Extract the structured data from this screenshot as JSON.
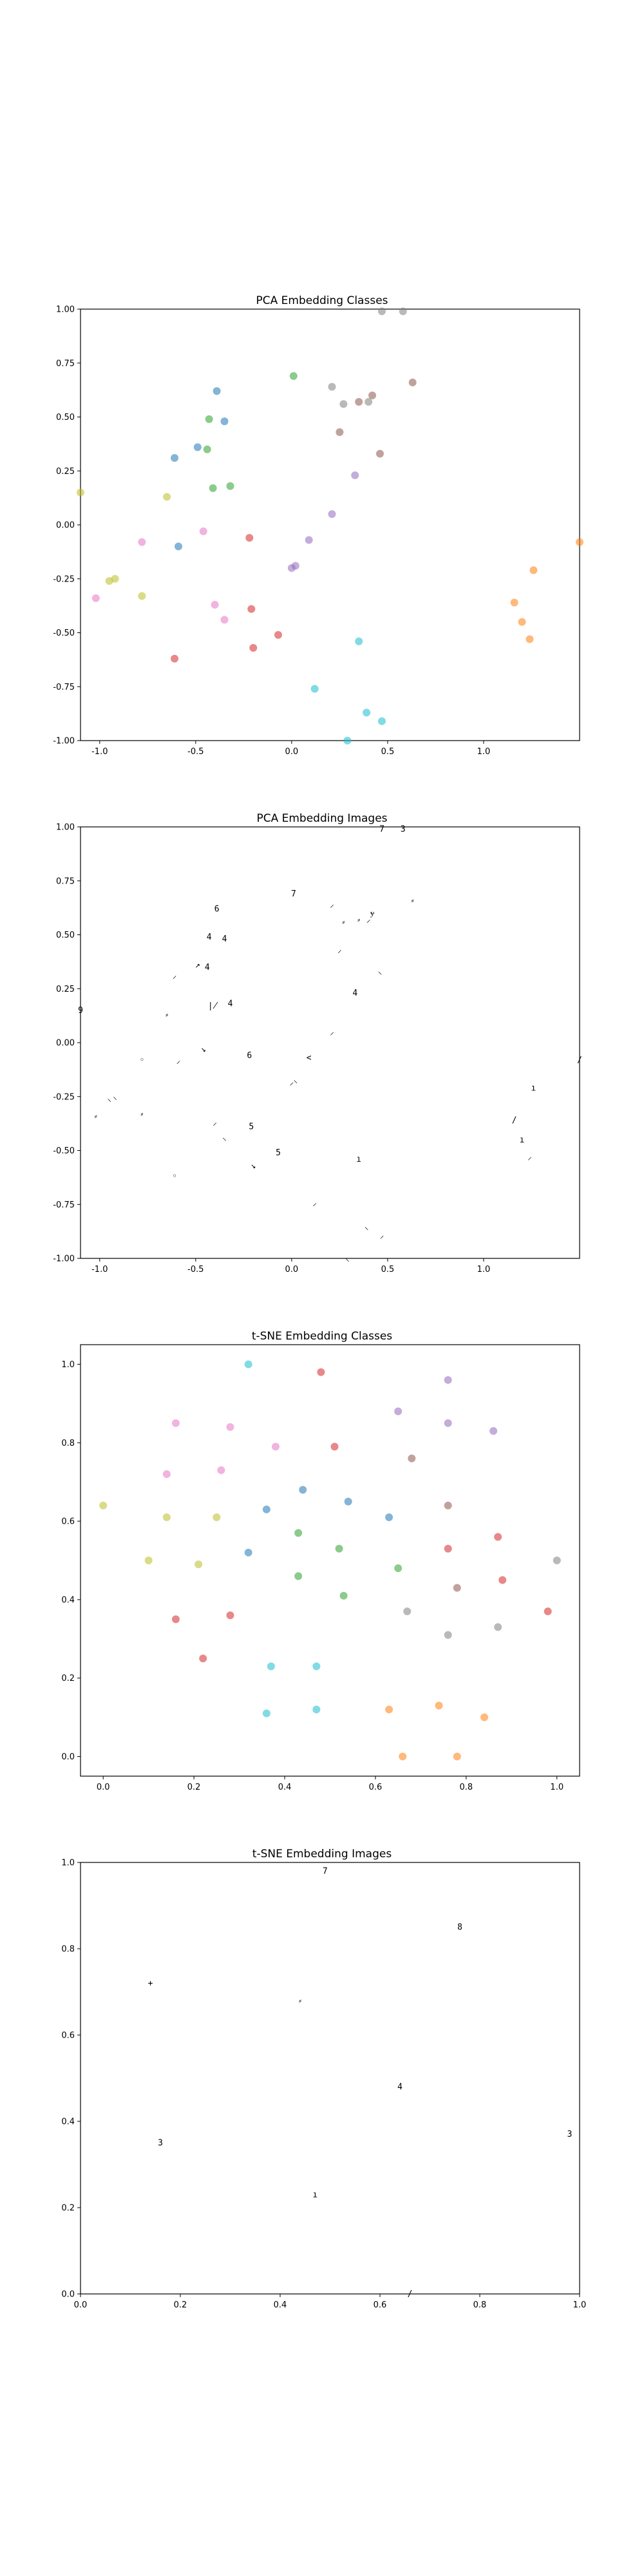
{
  "chart_data": [
    {
      "type": "scatter",
      "title": "PCA Embedding Classes",
      "xlim": [
        -1.1,
        1.5
      ],
      "ylim": [
        -1.0,
        1.0
      ],
      "xticks": [
        "-1.0",
        "-0.5",
        "0.0",
        "0.5",
        "1.0"
      ],
      "yticks": [
        "1.00",
        "0.75",
        "0.50",
        "0.25",
        "0.00",
        "-0.25",
        "-0.50",
        "-0.75",
        "-1.00"
      ],
      "xtick_values": [
        -1.0,
        -0.5,
        0.0,
        0.5,
        1.0
      ],
      "ytick_values": [
        1.0,
        0.75,
        0.5,
        0.25,
        0.0,
        -0.25,
        -0.5,
        -0.75,
        -1.0
      ],
      "grid": false,
      "points": [
        {
          "x": -0.39,
          "y": 0.62,
          "c": "#1f77b4"
        },
        {
          "x": -0.35,
          "y": 0.48,
          "c": "#1f77b4"
        },
        {
          "x": -0.49,
          "y": 0.36,
          "c": "#1f77b4"
        },
        {
          "x": -0.61,
          "y": 0.31,
          "c": "#1f77b4"
        },
        {
          "x": -0.59,
          "y": -0.1,
          "c": "#1f77b4"
        },
        {
          "x": 1.16,
          "y": -0.36,
          "c": "#ff7f0e"
        },
        {
          "x": 1.26,
          "y": -0.21,
          "c": "#ff7f0e"
        },
        {
          "x": 1.2,
          "y": -0.45,
          "c": "#ff7f0e"
        },
        {
          "x": 1.24,
          "y": -0.53,
          "c": "#ff7f0e"
        },
        {
          "x": 1.5,
          "y": -0.08,
          "c": "#ff7f0e"
        },
        {
          "x": 0.01,
          "y": 0.69,
          "c": "#2ca02c"
        },
        {
          "x": -0.43,
          "y": 0.49,
          "c": "#2ca02c"
        },
        {
          "x": -0.44,
          "y": 0.35,
          "c": "#2ca02c"
        },
        {
          "x": -0.41,
          "y": 0.17,
          "c": "#2ca02c"
        },
        {
          "x": -0.32,
          "y": 0.18,
          "c": "#2ca02c"
        },
        {
          "x": -0.22,
          "y": -0.06,
          "c": "#d62728"
        },
        {
          "x": -0.21,
          "y": -0.39,
          "c": "#d62728"
        },
        {
          "x": -0.07,
          "y": -0.51,
          "c": "#d62728"
        },
        {
          "x": -0.2,
          "y": -0.57,
          "c": "#d62728"
        },
        {
          "x": -0.61,
          "y": -0.62,
          "c": "#d62728"
        },
        {
          "x": 0.33,
          "y": 0.23,
          "c": "#9467bd"
        },
        {
          "x": 0.21,
          "y": 0.05,
          "c": "#9467bd"
        },
        {
          "x": 0.09,
          "y": -0.07,
          "c": "#9467bd"
        },
        {
          "x": 0.02,
          "y": -0.19,
          "c": "#9467bd"
        },
        {
          "x": 0.0,
          "y": -0.2,
          "c": "#9467bd"
        },
        {
          "x": 0.42,
          "y": 0.6,
          "c": "#8c564b"
        },
        {
          "x": 0.63,
          "y": 0.66,
          "c": "#8c564b"
        },
        {
          "x": 0.25,
          "y": 0.43,
          "c": "#8c564b"
        },
        {
          "x": 0.35,
          "y": 0.57,
          "c": "#8c564b"
        },
        {
          "x": 0.46,
          "y": 0.33,
          "c": "#8c564b"
        },
        {
          "x": -0.78,
          "y": -0.08,
          "c": "#e377c2"
        },
        {
          "x": -0.46,
          "y": -0.03,
          "c": "#e377c2"
        },
        {
          "x": -0.4,
          "y": -0.37,
          "c": "#e377c2"
        },
        {
          "x": -0.35,
          "y": -0.44,
          "c": "#e377c2"
        },
        {
          "x": -1.02,
          "y": -0.34,
          "c": "#e377c2"
        },
        {
          "x": 0.21,
          "y": 0.64,
          "c": "#7f7f7f"
        },
        {
          "x": 0.27,
          "y": 0.56,
          "c": "#7f7f7f"
        },
        {
          "x": 0.4,
          "y": 0.57,
          "c": "#7f7f7f"
        },
        {
          "x": 0.47,
          "y": 0.99,
          "c": "#7f7f7f"
        },
        {
          "x": 0.58,
          "y": 0.99,
          "c": "#7f7f7f"
        },
        {
          "x": -0.65,
          "y": 0.13,
          "c": "#bcbd22"
        },
        {
          "x": -1.1,
          "y": 0.15,
          "c": "#bcbd22"
        },
        {
          "x": -0.95,
          "y": -0.26,
          "c": "#bcbd22"
        },
        {
          "x": -0.92,
          "y": -0.25,
          "c": "#bcbd22"
        },
        {
          "x": -0.78,
          "y": -0.33,
          "c": "#bcbd22"
        },
        {
          "x": 0.35,
          "y": -0.54,
          "c": "#17becf"
        },
        {
          "x": 0.12,
          "y": -0.76,
          "c": "#17becf"
        },
        {
          "x": 0.39,
          "y": -0.87,
          "c": "#17becf"
        },
        {
          "x": 0.47,
          "y": -0.91,
          "c": "#17becf"
        },
        {
          "x": 0.29,
          "y": -1.0,
          "c": "#17becf"
        }
      ]
    },
    {
      "type": "scatter",
      "title": "PCA Embedding Images",
      "xlim": [
        -1.1,
        1.5
      ],
      "ylim": [
        -1.0,
        1.0
      ],
      "xticks": [
        "-1.0",
        "-0.5",
        "0.0",
        "0.5",
        "1.0"
      ],
      "yticks": [
        "1.00",
        "0.75",
        "0.50",
        "0.25",
        "0.00",
        "-0.25",
        "-0.50",
        "-0.75",
        "-1.00"
      ],
      "xtick_values": [
        -1.0,
        -0.5,
        0.0,
        0.5,
        1.0
      ],
      "ytick_values": [
        1.0,
        0.75,
        0.5,
        0.25,
        0.0,
        -0.25,
        -0.5,
        -0.75,
        -1.0
      ],
      "grid": false,
      "points": [
        {
          "x": -0.39,
          "y": 0.62,
          "g": "6"
        },
        {
          "x": -0.35,
          "y": 0.48,
          "g": "4"
        },
        {
          "x": -0.49,
          "y": 0.36,
          "g": "↗"
        },
        {
          "x": -0.61,
          "y": 0.31,
          "g": "⸝"
        },
        {
          "x": -0.59,
          "y": -0.1,
          "g": "⸍"
        },
        {
          "x": 1.16,
          "y": -0.36,
          "g": "/"
        },
        {
          "x": 1.26,
          "y": -0.21,
          "g": "ı"
        },
        {
          "x": 1.2,
          "y": -0.45,
          "g": "ı"
        },
        {
          "x": 1.24,
          "y": -0.53,
          "g": "⸝"
        },
        {
          "x": 1.5,
          "y": -0.08,
          "g": "/"
        },
        {
          "x": 0.01,
          "y": 0.69,
          "g": "7"
        },
        {
          "x": -0.43,
          "y": 0.49,
          "g": "4"
        },
        {
          "x": -0.44,
          "y": 0.35,
          "g": "4"
        },
        {
          "x": -0.41,
          "y": 0.17,
          "g": "∤"
        },
        {
          "x": -0.32,
          "y": 0.18,
          "g": "4"
        },
        {
          "x": -0.22,
          "y": -0.06,
          "g": "6"
        },
        {
          "x": -0.21,
          "y": -0.39,
          "g": "5"
        },
        {
          "x": -0.07,
          "y": -0.51,
          "g": "5"
        },
        {
          "x": -0.2,
          "y": -0.57,
          "g": "↘"
        },
        {
          "x": -0.61,
          "y": -0.62,
          "g": "◦"
        },
        {
          "x": 0.33,
          "y": 0.23,
          "g": "4"
        },
        {
          "x": 0.21,
          "y": 0.05,
          "g": "⸝"
        },
        {
          "x": 0.09,
          "y": -0.07,
          "g": "<"
        },
        {
          "x": 0.02,
          "y": -0.19,
          "g": "⸌"
        },
        {
          "x": 0.0,
          "y": -0.2,
          "g": "⸍"
        },
        {
          "x": 0.42,
          "y": 0.6,
          "g": "ɏ"
        },
        {
          "x": 0.63,
          "y": 0.66,
          "g": "⸗"
        },
        {
          "x": 0.25,
          "y": 0.43,
          "g": "⸝"
        },
        {
          "x": 0.35,
          "y": 0.57,
          "g": "⸗"
        },
        {
          "x": 0.46,
          "y": 0.33,
          "g": "⸜"
        },
        {
          "x": -0.78,
          "y": -0.08,
          "g": "◦"
        },
        {
          "x": -0.46,
          "y": -0.03,
          "g": "↘"
        },
        {
          "x": -0.4,
          "y": -0.37,
          "g": "⸝"
        },
        {
          "x": -0.35,
          "y": -0.44,
          "g": "⸜"
        },
        {
          "x": -1.02,
          "y": -0.34,
          "g": "⸗"
        },
        {
          "x": 0.21,
          "y": 0.64,
          "g": "⸝"
        },
        {
          "x": 0.27,
          "y": 0.56,
          "g": "⸗"
        },
        {
          "x": 0.4,
          "y": 0.57,
          "g": "⸝"
        },
        {
          "x": 0.47,
          "y": 0.99,
          "g": "7"
        },
        {
          "x": 0.58,
          "y": 0.99,
          "g": "3"
        },
        {
          "x": -0.65,
          "y": 0.13,
          "g": "⸗"
        },
        {
          "x": -1.1,
          "y": 0.15,
          "g": "9"
        },
        {
          "x": -0.95,
          "y": -0.26,
          "g": "⸜"
        },
        {
          "x": -0.92,
          "y": -0.25,
          "g": "⸜"
        },
        {
          "x": -0.78,
          "y": -0.33,
          "g": "⸗"
        },
        {
          "x": 0.35,
          "y": -0.54,
          "g": "ı"
        },
        {
          "x": 0.12,
          "y": -0.76,
          "g": "⸍"
        },
        {
          "x": 0.39,
          "y": -0.87,
          "g": "⸌"
        },
        {
          "x": 0.47,
          "y": -0.91,
          "g": "⸍"
        },
        {
          "x": 0.29,
          "y": -1.0,
          "g": "⸜"
        }
      ]
    },
    {
      "type": "scatter",
      "title": "t-SNE Embedding Classes",
      "xlim": [
        -0.05,
        1.05
      ],
      "ylim": [
        -0.05,
        1.05
      ],
      "xticks": [
        "0.0",
        "0.2",
        "0.4",
        "0.6",
        "0.8",
        "1.0"
      ],
      "yticks": [
        "1.0",
        "0.8",
        "0.6",
        "0.4",
        "0.2",
        "0.0"
      ],
      "xtick_values": [
        0.0,
        0.2,
        0.4,
        0.6,
        0.8,
        1.0
      ],
      "ytick_values": [
        1.0,
        0.8,
        0.6,
        0.4,
        0.2,
        0.0
      ],
      "grid": false,
      "points": [
        {
          "x": 0.32,
          "y": 1.0,
          "c": "#17becf"
        },
        {
          "x": 0.37,
          "y": 0.23,
          "c": "#17becf"
        },
        {
          "x": 0.47,
          "y": 0.23,
          "c": "#17becf"
        },
        {
          "x": 0.36,
          "y": 0.11,
          "c": "#17becf"
        },
        {
          "x": 0.47,
          "y": 0.12,
          "c": "#17becf"
        },
        {
          "x": 0.36,
          "y": 0.63,
          "c": "#1f77b4"
        },
        {
          "x": 0.44,
          "y": 0.68,
          "c": "#1f77b4"
        },
        {
          "x": 0.54,
          "y": 0.65,
          "c": "#1f77b4"
        },
        {
          "x": 0.63,
          "y": 0.61,
          "c": "#1f77b4"
        },
        {
          "x": 0.32,
          "y": 0.52,
          "c": "#1f77b4"
        },
        {
          "x": 0.48,
          "y": 0.98,
          "c": "#d62728"
        },
        {
          "x": 0.51,
          "y": 0.79,
          "c": "#d62728"
        },
        {
          "x": 0.16,
          "y": 0.35,
          "c": "#d62728"
        },
        {
          "x": 0.28,
          "y": 0.36,
          "c": "#d62728"
        },
        {
          "x": 0.22,
          "y": 0.25,
          "c": "#d62728"
        },
        {
          "x": 0.16,
          "y": 0.85,
          "c": "#e377c2"
        },
        {
          "x": 0.28,
          "y": 0.84,
          "c": "#e377c2"
        },
        {
          "x": 0.38,
          "y": 0.79,
          "c": "#e377c2"
        },
        {
          "x": 0.26,
          "y": 0.73,
          "c": "#e377c2"
        },
        {
          "x": 0.14,
          "y": 0.72,
          "c": "#e377c2"
        },
        {
          "x": 0.65,
          "y": 0.88,
          "c": "#9467bd"
        },
        {
          "x": 0.76,
          "y": 0.96,
          "c": "#9467bd"
        },
        {
          "x": 0.76,
          "y": 0.85,
          "c": "#9467bd"
        },
        {
          "x": 0.86,
          "y": 0.83,
          "c": "#9467bd"
        },
        {
          "x": 0.68,
          "y": 0.76,
          "c": "#8c564b"
        },
        {
          "x": 0.43,
          "y": 0.57,
          "c": "#2ca02c"
        },
        {
          "x": 0.52,
          "y": 0.53,
          "c": "#2ca02c"
        },
        {
          "x": 0.43,
          "y": 0.46,
          "c": "#2ca02c"
        },
        {
          "x": 0.53,
          "y": 0.41,
          "c": "#2ca02c"
        },
        {
          "x": 0.65,
          "y": 0.48,
          "c": "#2ca02c"
        },
        {
          "x": 0.0,
          "y": 0.64,
          "c": "#bcbd22"
        },
        {
          "x": 0.14,
          "y": 0.61,
          "c": "#bcbd22"
        },
        {
          "x": 0.25,
          "y": 0.61,
          "c": "#bcbd22"
        },
        {
          "x": 0.1,
          "y": 0.5,
          "c": "#bcbd22"
        },
        {
          "x": 0.21,
          "y": 0.49,
          "c": "#bcbd22"
        },
        {
          "x": 0.76,
          "y": 0.64,
          "c": "#8c564b"
        },
        {
          "x": 0.76,
          "y": 0.53,
          "c": "#d62728"
        },
        {
          "x": 0.87,
          "y": 0.56,
          "c": "#d62728"
        },
        {
          "x": 0.88,
          "y": 0.45,
          "c": "#d62728"
        },
        {
          "x": 0.98,
          "y": 0.37,
          "c": "#d62728"
        },
        {
          "x": 0.67,
          "y": 0.37,
          "c": "#7f7f7f"
        },
        {
          "x": 0.78,
          "y": 0.43,
          "c": "#8c564b"
        },
        {
          "x": 0.76,
          "y": 0.31,
          "c": "#7f7f7f"
        },
        {
          "x": 0.87,
          "y": 0.33,
          "c": "#7f7f7f"
        },
        {
          "x": 1.0,
          "y": 0.5,
          "c": "#7f7f7f"
        },
        {
          "x": 0.63,
          "y": 0.12,
          "c": "#ff7f0e"
        },
        {
          "x": 0.74,
          "y": 0.13,
          "c": "#ff7f0e"
        },
        {
          "x": 0.66,
          "y": 0.0,
          "c": "#ff7f0e"
        },
        {
          "x": 0.78,
          "y": 0.0,
          "c": "#ff7f0e"
        },
        {
          "x": 0.84,
          "y": 0.1,
          "c": "#ff7f0e"
        }
      ]
    },
    {
      "type": "scatter",
      "title": "t-SNE Embedding Images",
      "xlim": [
        0.0,
        1.0
      ],
      "ylim": [
        0.0,
        1.0
      ],
      "xticks": [
        "0.0",
        "0.2",
        "0.4",
        "0.6",
        "0.8",
        "1.0"
      ],
      "yticks": [
        "1.0",
        "0.8",
        "0.6",
        "0.4",
        "0.2",
        "0.0"
      ],
      "xtick_values": [
        0.0,
        0.2,
        0.4,
        0.6,
        0.8,
        1.0
      ],
      "ytick_values": [
        1.0,
        0.8,
        0.6,
        0.4,
        0.2,
        0.0
      ],
      "grid": false,
      "points": [
        {
          "x": 0.49,
          "y": 0.98,
          "g": "7"
        },
        {
          "x": 0.76,
          "y": 0.85,
          "g": "8"
        },
        {
          "x": 0.14,
          "y": 0.72,
          "g": "+"
        },
        {
          "x": 0.44,
          "y": 0.68,
          "g": "⸗"
        },
        {
          "x": 0.64,
          "y": 0.48,
          "g": "4"
        },
        {
          "x": 0.16,
          "y": 0.35,
          "g": "3"
        },
        {
          "x": 0.98,
          "y": 0.37,
          "g": "3"
        },
        {
          "x": 0.47,
          "y": 0.23,
          "g": "ı"
        },
        {
          "x": 0.66,
          "y": 0.0,
          "g": "/"
        }
      ]
    }
  ]
}
